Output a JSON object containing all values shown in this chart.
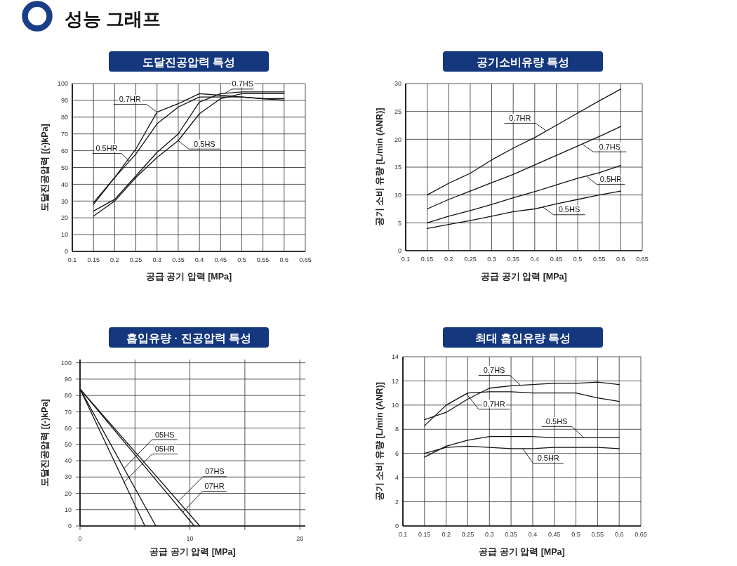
{
  "chart_data": [
    {
      "type": "other",
      "title": "성능 그래프"
    },
    {
      "type": "line",
      "title": "도달진공압력 특성",
      "xlabel": "공급 공기 압력 [MPa]",
      "ylabel": "도달진공압력 [(-)kPa]",
      "xlim": [
        0.1,
        0.65
      ],
      "xticks": [
        0.1,
        0.15,
        0.2,
        0.25,
        0.3,
        0.35,
        0.4,
        0.45,
        0.5,
        0.55,
        0.6,
        0.65
      ],
      "ylim": [
        0,
        100
      ],
      "yticks": [
        0,
        10,
        20,
        30,
        40,
        50,
        60,
        70,
        80,
        90,
        100
      ],
      "grid": true,
      "line_style": "solid",
      "x": [
        0.15,
        0.2,
        0.25,
        0.3,
        0.35,
        0.4,
        0.45,
        0.5,
        0.55,
        0.6
      ],
      "series": [
        {
          "name": "0.7HR",
          "color": "#111111",
          "values": [
            29,
            44,
            61,
            83,
            88,
            94,
            93,
            92,
            91,
            90
          ]
        },
        {
          "name": "0.7HS",
          "color": "#111111",
          "values": [
            24,
            31,
            45,
            59,
            70,
            89,
            94,
            95,
            95,
            95
          ]
        },
        {
          "name": "0.5HR",
          "color": "#111111",
          "values": [
            28,
            44,
            58,
            76,
            86,
            92,
            92,
            92,
            91,
            91
          ]
        },
        {
          "name": "0.5HS",
          "color": "#111111",
          "values": [
            21,
            30,
            44,
            56,
            66,
            82,
            91,
            94,
            94,
            94
          ]
        }
      ]
    },
    {
      "type": "line",
      "title": "공기소비유량 특성",
      "xlabel": "공급 공기 압력 [MPa]",
      "ylabel": "공기 소비 유량 [L/min (ANR)]",
      "xlim": [
        0.1,
        0.65
      ],
      "xticks": [
        0.1,
        0.15,
        0.2,
        0.25,
        0.3,
        0.35,
        0.4,
        0.45,
        0.5,
        0.55,
        0.6,
        0.65
      ],
      "ylim": [
        0,
        30
      ],
      "yticks": [
        0,
        5,
        10,
        15,
        20,
        25,
        30
      ],
      "grid": true,
      "line_style": "solid",
      "x": [
        0.15,
        0.2,
        0.25,
        0.3,
        0.35,
        0.4,
        0.45,
        0.5,
        0.55,
        0.6
      ],
      "series": [
        {
          "name": "0.7HR",
          "color": "#111111",
          "values": [
            10,
            12.1,
            13.9,
            16.3,
            18.4,
            20.3,
            22.5,
            24.7,
            26.9,
            29
          ]
        },
        {
          "name": "0.7HS",
          "color": "#111111",
          "values": [
            7.5,
            9.2,
            10.7,
            12.2,
            13.7,
            15.4,
            17.1,
            18.8,
            20.5,
            22.3
          ]
        },
        {
          "name": "0.5HR",
          "color": "#111111",
          "values": [
            5,
            6.2,
            7.2,
            8.3,
            9.5,
            10.6,
            11.8,
            13,
            14,
            15.3
          ]
        },
        {
          "name": "0.5HS",
          "color": "#111111",
          "values": [
            4,
            4.7,
            5.4,
            6.2,
            7,
            7.5,
            8.4,
            9.2,
            10,
            10.7
          ]
        }
      ]
    },
    {
      "type": "line",
      "title": "흡입유량 · 진공압력 특성",
      "xlabel": "공급 공기 압력 [MPa]",
      "ylabel": "도달진공압력 [(-)kPa]",
      "xlim": [
        0,
        20.5
      ],
      "xticks": [
        0,
        {
          "value": 5,
          "label": null
        },
        10,
        {
          "value": 15,
          "label": null
        },
        20
      ],
      "ylim": [
        0,
        102
      ],
      "yticks": [
        0,
        10,
        20,
        30,
        40,
        50,
        60,
        70,
        80,
        90,
        100
      ],
      "grid": true,
      "line_style": "solid",
      "series": [
        {
          "name": "05HS",
          "color": "#111111",
          "x": [
            0,
            6.9
          ],
          "values": [
            84,
            0
          ]
        },
        {
          "name": "05HR",
          "color": "#111111",
          "x": [
            0,
            5.9
          ],
          "values": [
            84,
            0
          ]
        },
        {
          "name": "07HS",
          "color": "#111111",
          "x": [
            0,
            10.9
          ],
          "values": [
            84,
            0
          ]
        },
        {
          "name": "07HR",
          "color": "#111111",
          "x": [
            0,
            10.4
          ],
          "values": [
            84,
            0
          ]
        }
      ]
    },
    {
      "type": "line",
      "title": "최대 흡입유량 특성",
      "xlabel": "공급 공기 압력 [MPa]",
      "ylabel": "공기 소비 유량 [L/min (ANR)]",
      "xlim": [
        0.1,
        0.65
      ],
      "xticks": [
        0.1,
        0.15,
        0.2,
        0.25,
        0.3,
        0.35,
        0.4,
        0.45,
        0.5,
        0.55,
        0.6,
        0.65
      ],
      "ylim": [
        0,
        14
      ],
      "yticks": [
        0,
        2,
        4,
        6,
        8,
        10,
        12,
        14
      ],
      "grid": true,
      "line_style": "solid",
      "x": [
        0.15,
        0.2,
        0.25,
        0.3,
        0.35,
        0.4,
        0.45,
        0.5,
        0.55,
        0.6
      ],
      "series": [
        {
          "name": "0.7HS",
          "color": "#111111",
          "values": [
            8.8,
            9.4,
            10.5,
            11.4,
            11.6,
            11.7,
            11.8,
            11.8,
            11.9,
            11.7
          ]
        },
        {
          "name": "0.7HR",
          "color": "#111111",
          "values": [
            8.3,
            10,
            11,
            11.1,
            11.1,
            11,
            11,
            11,
            10.6,
            10.3
          ]
        },
        {
          "name": "0.5HS",
          "color": "#111111",
          "values": [
            5.7,
            6.6,
            7.1,
            7.4,
            7.4,
            7.4,
            7.3,
            7.3,
            7.3,
            7.3
          ]
        },
        {
          "name": "0.5HR",
          "color": "#111111",
          "values": [
            6,
            6.5,
            6.6,
            6.5,
            6.4,
            6.4,
            6.5,
            6.5,
            6.5,
            6.4
          ]
        }
      ]
    }
  ]
}
